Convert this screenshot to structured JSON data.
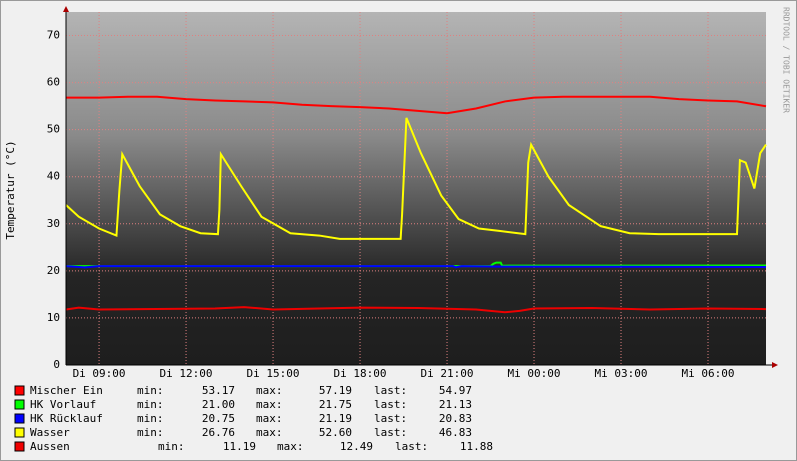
{
  "chart_data": {
    "type": "line",
    "ylabel": "Temperatur (°C)",
    "watermark": "RRDTOOL / TOBI OETIKER",
    "xlim": [
      7.86,
      32.0
    ],
    "xticks": [
      {
        "value": 9,
        "label": "Di 09:00"
      },
      {
        "value": 12,
        "label": "Di 12:00"
      },
      {
        "value": 15,
        "label": "Di 15:00"
      },
      {
        "value": 18,
        "label": "Di 18:00"
      },
      {
        "value": 21,
        "label": "Di 21:00"
      },
      {
        "value": 24,
        "label": "Mi 00:00"
      },
      {
        "value": 27,
        "label": "Mi 03:00"
      },
      {
        "value": 30,
        "label": "Mi 06:00"
      }
    ],
    "ylim": [
      0,
      75
    ],
    "yticks": [
      0,
      10,
      20,
      30,
      40,
      50,
      60,
      70
    ],
    "grid": true,
    "legend_labels": {
      "min": "min:",
      "max": "max:",
      "last": "last:"
    },
    "series": [
      {
        "name": "Mischer Ein",
        "color": "#ff0000",
        "x": [
          7.86,
          9,
          10,
          11,
          12,
          13,
          14,
          15,
          16,
          17,
          18,
          19,
          20,
          21,
          22,
          23,
          24,
          25,
          26,
          27,
          28,
          29,
          30,
          31,
          32
        ],
        "values": [
          56.8,
          56.8,
          57,
          57,
          56.5,
          56.2,
          56,
          55.8,
          55.3,
          55,
          54.8,
          54.5,
          54,
          53.5,
          54.5,
          56,
          56.8,
          57,
          57,
          57,
          57,
          56.5,
          56.2,
          56,
          54.97
        ],
        "stats": {
          "min": 53.17,
          "max": 57.19,
          "last": 54.97
        }
      },
      {
        "name": "HK Vorlauf",
        "color": "#00ff00",
        "x": [
          7.86,
          22.5,
          22.6,
          22.7,
          22.85,
          22.9,
          32
        ],
        "values": [
          21,
          21,
          21.5,
          21.75,
          21.75,
          21.1,
          21.13
        ],
        "stats": {
          "min": {
            "value": 21,
            "label": "21.00"
          },
          "max": 21.75,
          "last": 21.13
        }
      },
      {
        "name": "HK Rücklauf",
        "color": "#0000ff",
        "x": [
          7.86,
          8.5,
          9.0,
          21.2,
          21.3,
          21.5,
          22.8,
          32
        ],
        "values": [
          21,
          20.75,
          21,
          21,
          20.75,
          21,
          20.9,
          20.83
        ],
        "stats": {
          "min": 20.75,
          "max": 21.19,
          "last": 20.83
        }
      },
      {
        "name": "Wasser",
        "color": "#ffff00",
        "x": [
          7.86,
          8.3,
          9.0,
          9.6,
          9.7,
          9.8,
          10.4,
          11.1,
          11.8,
          12.5,
          13.1,
          13.15,
          13.2,
          13.9,
          14.6,
          15.6,
          16.6,
          17.3,
          19.4,
          19.45,
          19.6,
          20.1,
          20.8,
          21.4,
          22.1,
          22.8,
          23.7,
          23.8,
          23.9,
          24.5,
          25.2,
          26.3,
          27.3,
          28.3,
          31.0,
          31.1,
          31.3,
          31.6,
          31.8,
          32.0
        ],
        "values": [
          34,
          31.5,
          29,
          27.5,
          37,
          44.8,
          38,
          32,
          29.5,
          28,
          27.8,
          33,
          44.8,
          38,
          31.5,
          28,
          27.5,
          26.8,
          26.8,
          32,
          52.5,
          45,
          36,
          31,
          29,
          28.5,
          27.8,
          43,
          46.8,
          40,
          34,
          29.5,
          28,
          27.8,
          27.8,
          43.5,
          43,
          37.5,
          45,
          46.83
        ],
        "stats": {
          "min": 26.76,
          "max": {
            "value": 52.6,
            "label": "52.60"
          },
          "last": 46.83
        }
      },
      {
        "name": "Aussen",
        "color": "#ee0000",
        "x": [
          7.86,
          8.3,
          9,
          13,
          14,
          15,
          18,
          20,
          22,
          23,
          23.5,
          24,
          26,
          28,
          30,
          32
        ],
        "values": [
          11.8,
          12.2,
          11.8,
          12,
          12.3,
          11.8,
          12.2,
          12.1,
          11.8,
          11.2,
          11.5,
          12,
          12.1,
          11.8,
          12,
          11.88
        ],
        "stats": {
          "min": 11.19,
          "max": 12.49,
          "last": 11.88
        }
      }
    ]
  }
}
